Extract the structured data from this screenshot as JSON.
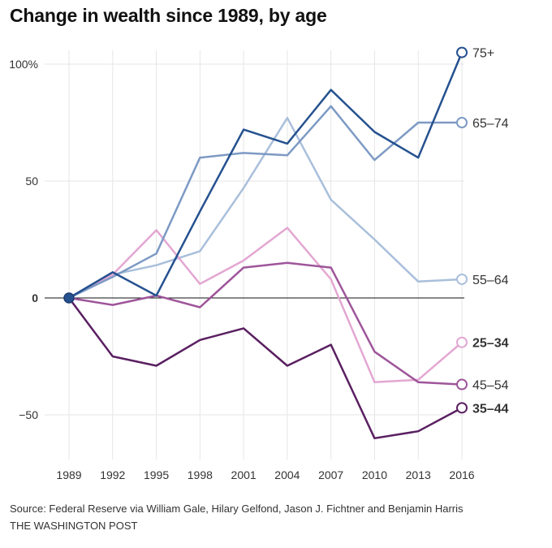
{
  "title": "Change in wealth since 1989, by age",
  "source": "Source: Federal Reserve via William Gale, Hilary Gelfond, Jason J. Fichtner and Benjamin Harris",
  "credit": "THE WASHINGTON POST",
  "chart_data": {
    "type": "line",
    "title": "Change in wealth since 1989, by age",
    "x": [
      1989,
      1992,
      1995,
      1998,
      2001,
      2004,
      2007,
      2010,
      2013,
      2016
    ],
    "ylim": [
      -70,
      110
    ],
    "grid": true,
    "legend": "end-of-line labels",
    "y_ticks": [
      {
        "value": 100,
        "label": "100%"
      },
      {
        "value": 50,
        "label": "50"
      },
      {
        "value": 0,
        "label": "0"
      },
      {
        "value": -50,
        "label": "−50"
      }
    ],
    "series": [
      {
        "name": "55–64",
        "color": "#a9bfdb",
        "bold": false,
        "values": [
          0,
          10,
          14,
          20,
          47,
          77,
          42,
          25,
          7,
          8
        ]
      },
      {
        "name": "25–34",
        "color": "#e3a7d2",
        "bold": true,
        "values": [
          0,
          10,
          29,
          6,
          16,
          30,
          8,
          -36,
          -35,
          -19
        ]
      },
      {
        "name": "65–74",
        "color": "#7d9ac4",
        "bold": false,
        "values": [
          0,
          9,
          19,
          60,
          62,
          61,
          82,
          59,
          75,
          75
        ]
      },
      {
        "name": "45–54",
        "color": "#9e559a",
        "bold": false,
        "values": [
          0,
          -3,
          1,
          -4,
          13,
          15,
          13,
          -23,
          -36,
          -37
        ]
      },
      {
        "name": "75+",
        "color": "#25518f",
        "bold": false,
        "values": [
          0,
          11,
          1,
          37,
          72,
          66,
          89,
          71,
          60,
          105
        ]
      },
      {
        "name": "35–44",
        "color": "#5a1f61",
        "bold": true,
        "values": [
          0,
          -25,
          -29,
          -18,
          -13,
          -29,
          -20,
          -60,
          -57,
          -47
        ]
      }
    ]
  }
}
